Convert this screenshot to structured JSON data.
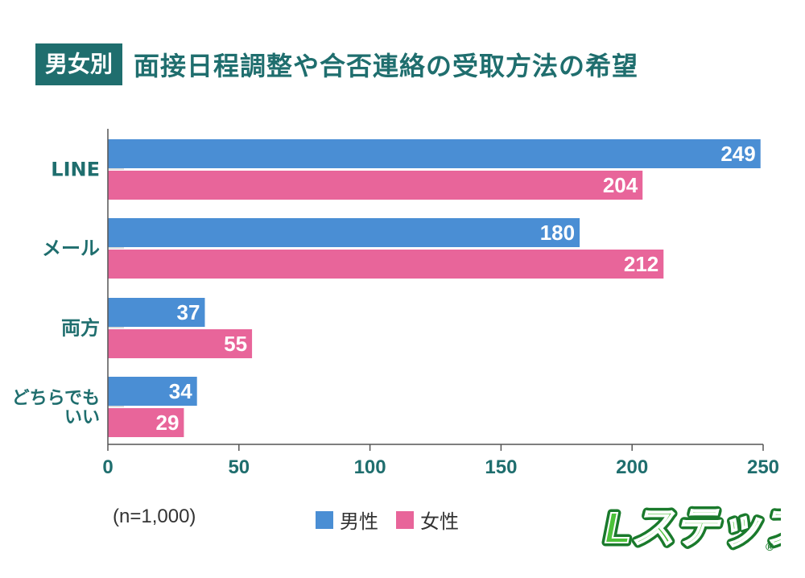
{
  "title": {
    "badge": "男女別",
    "text": "面接日程調整や合否連絡の受取方法の希望"
  },
  "note": "(n=1,000)",
  "logo": {
    "text": "Lステップ",
    "mark": "®"
  },
  "colors": {
    "male": "#4a8ed4",
    "female": "#e8659a",
    "accent": "#1f6e6e",
    "axis": "#555555"
  },
  "chart_data": {
    "type": "bar",
    "orientation": "horizontal",
    "categories": [
      "LINE",
      "メール",
      "両方",
      "どちらでも|いい"
    ],
    "series": [
      {
        "name": "男性",
        "values": [
          249,
          180,
          37,
          34
        ]
      },
      {
        "name": "女性",
        "values": [
          204,
          212,
          55,
          29
        ]
      }
    ],
    "xlim": [
      0,
      250
    ],
    "xticks": [
      "0",
      "50",
      "100",
      "150",
      "200",
      "250"
    ],
    "legend": "bottom-center",
    "grid": false
  }
}
